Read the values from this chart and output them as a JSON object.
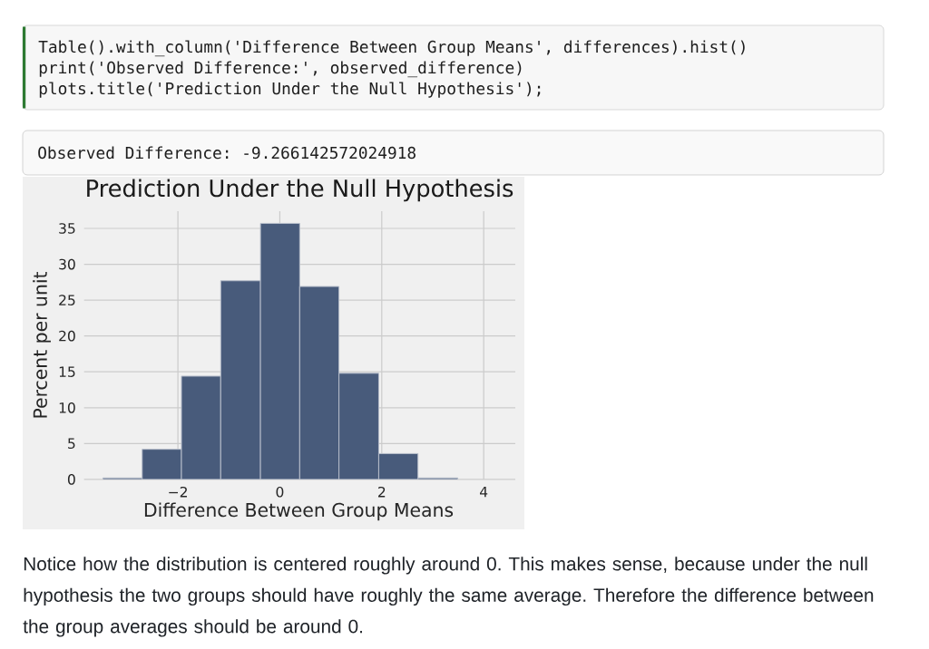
{
  "chart_data": {
    "type": "histogram",
    "title": "Prediction Under the Null Hypothesis",
    "xlabel": "Difference Between Group Means",
    "ylabel": "Percent per unit",
    "bins": [
      -3.47,
      -2.7,
      -1.93,
      -1.16,
      -0.38,
      0.39,
      1.16,
      1.94,
      2.71,
      3.49
    ],
    "values": [
      0.2,
      4.2,
      14.4,
      27.7,
      35.7,
      26.9,
      14.8,
      3.6,
      0.2
    ],
    "color": "#485b7b",
    "xlim": [
      -3.84,
      4.62
    ],
    "ylim": [
      0,
      37.4
    ],
    "xticks": [
      {
        "value": -2,
        "label": "−2"
      },
      0,
      2,
      4
    ],
    "yticks": [
      0,
      5,
      10,
      15,
      20,
      25,
      30,
      35
    ],
    "grid": true,
    "annotations": [
      "Table().with_column('Difference Between Group Means', differences).hist()",
      "print('Observed Difference:', observed_difference)",
      "plots.title('Prediction Under the Null Hypothesis');",
      "Observed Difference: -9.266142572024918",
      "Notice how the distribution is centered roughly around 0. This makes sense, because under the null hypothesis the two groups should have roughly the same average. Therefore the difference between the group averages should be around 0."
    ]
  }
}
